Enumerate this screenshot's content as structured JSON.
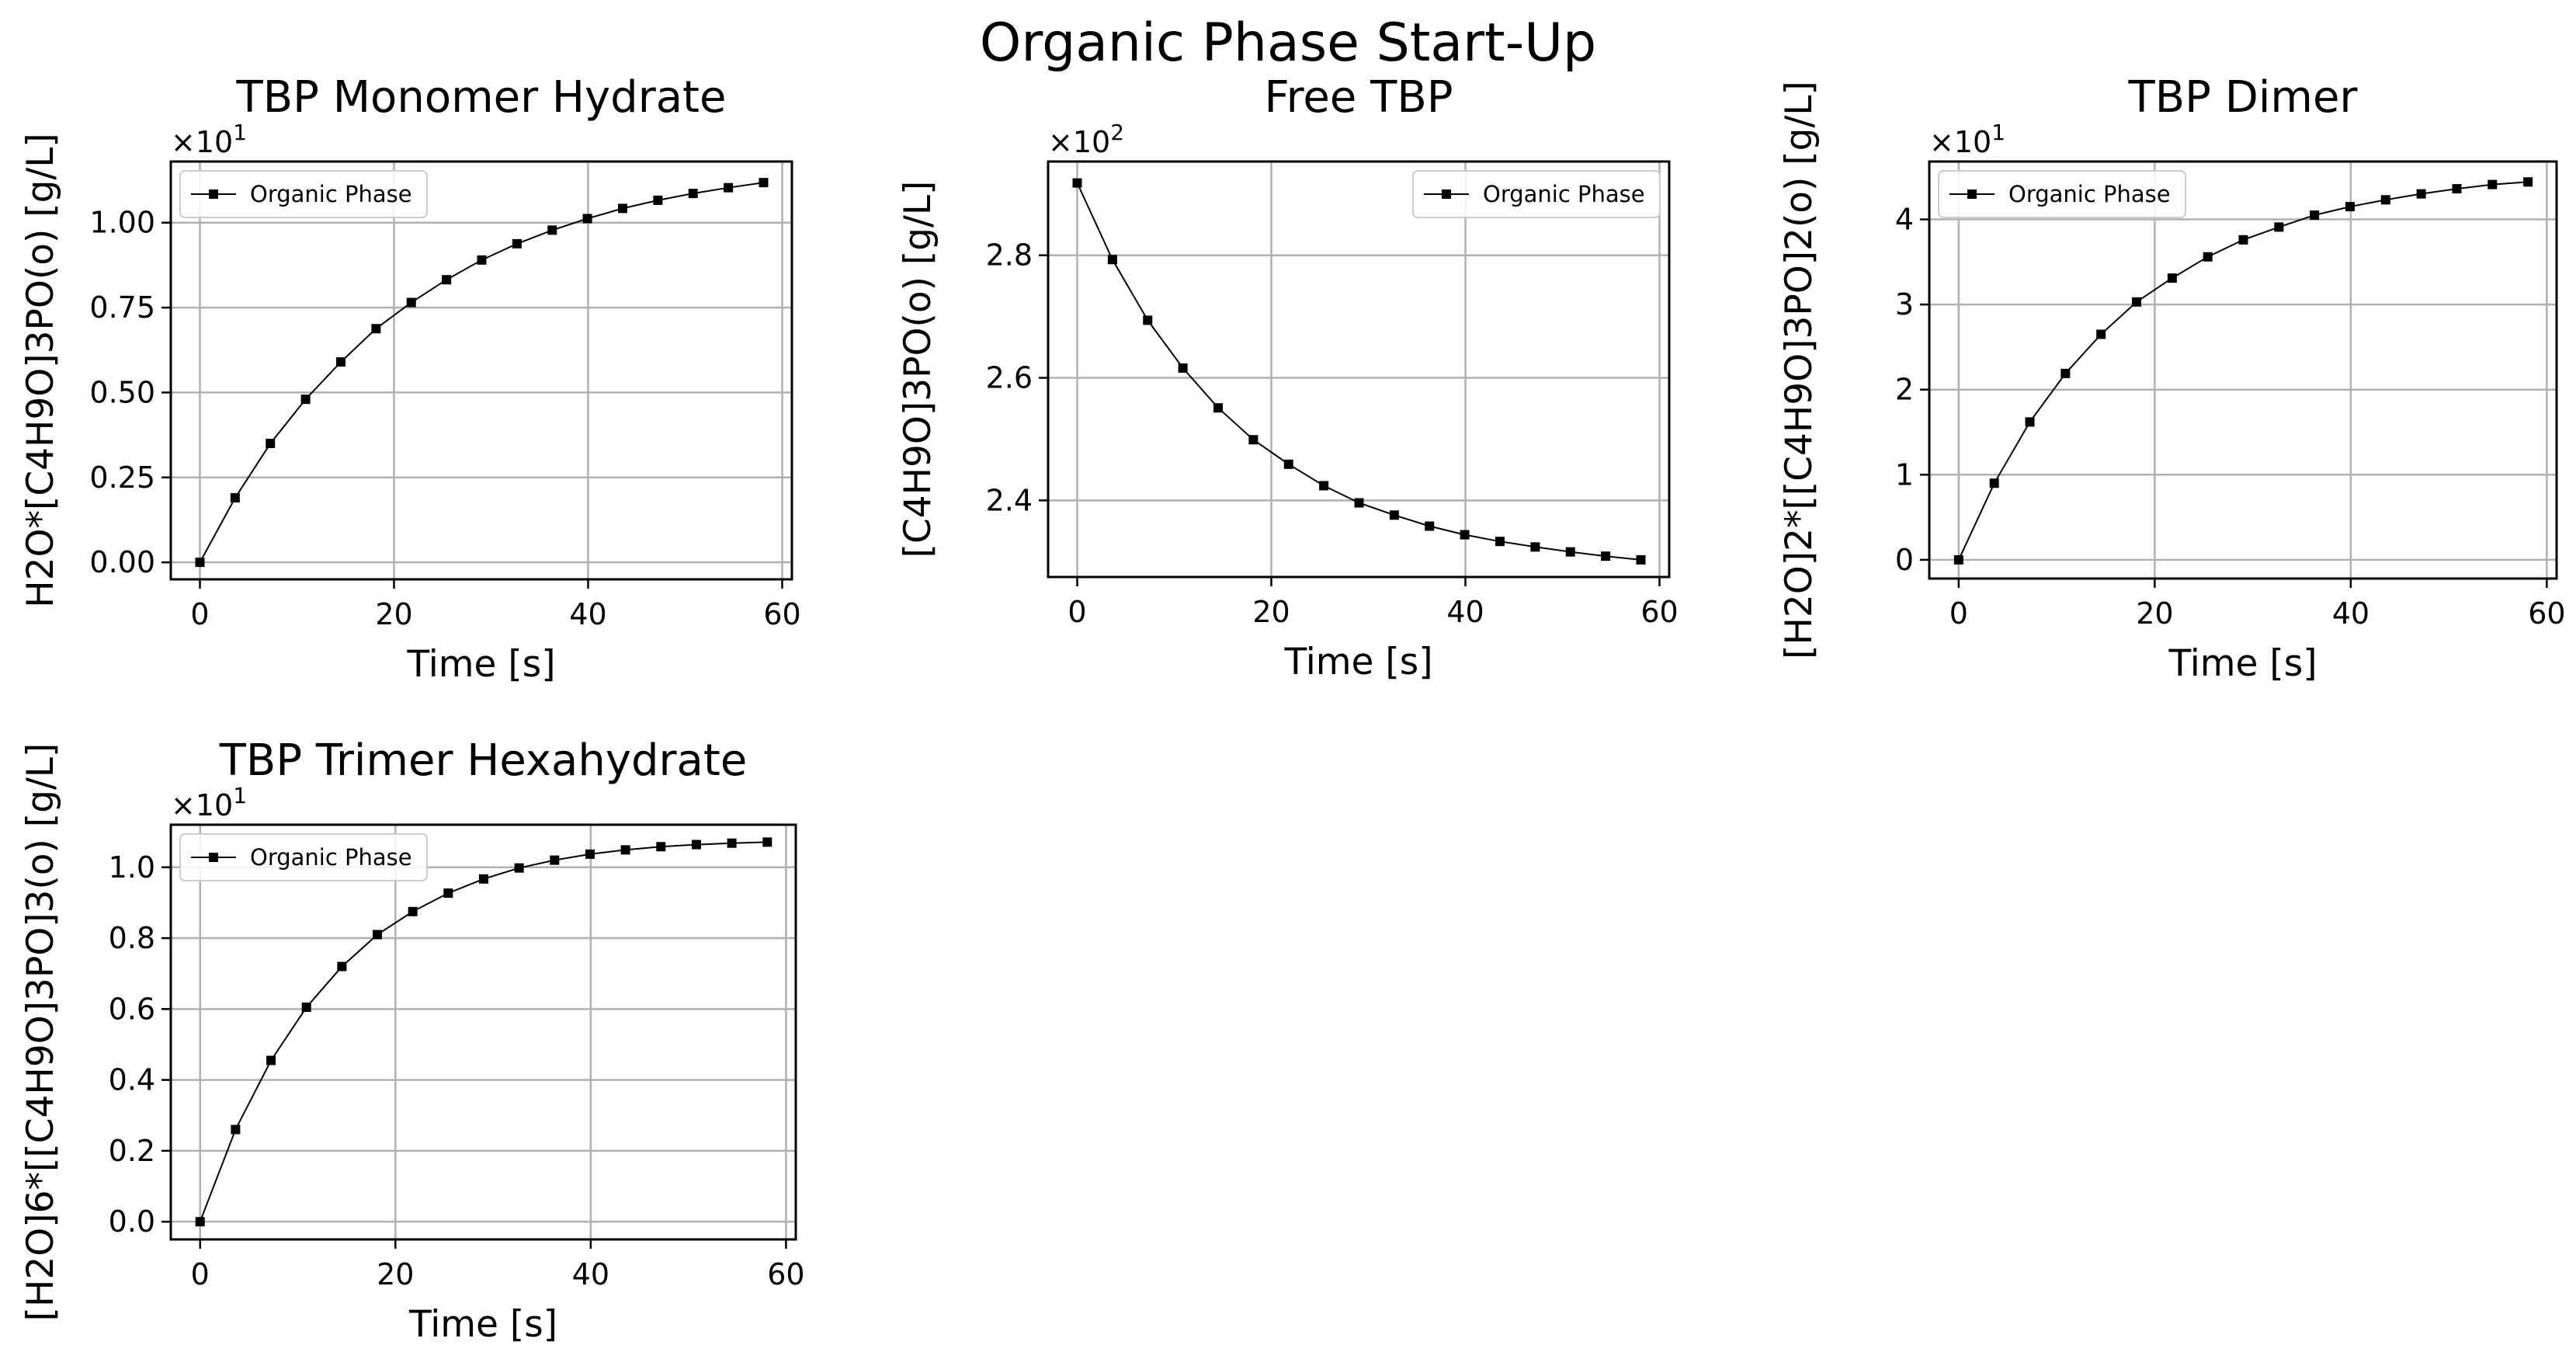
{
  "figure_title": "Organic Phase Start-Up",
  "chart_data": [
    {
      "type": "line",
      "title": "TBP Monomer Hydrate",
      "xlabel": "Time [s]",
      "ylabel": "H2O*[C4H9O]3PO(o) [g/L]",
      "offset_label": "×10",
      "offset_exp": "1",
      "scale": 10,
      "xlim": [
        -3,
        61
      ],
      "ylim": [
        -0.5,
        11.8
      ],
      "xticks": [
        0,
        20,
        40,
        60
      ],
      "xtick_labels": [
        "0",
        "20",
        "40",
        "60"
      ],
      "yticks": [
        0,
        2.5,
        5,
        7.5,
        10
      ],
      "ytick_labels": [
        "0.00",
        "0.25",
        "0.50",
        "0.75",
        "1.00"
      ],
      "grid": true,
      "legend_position": "upper left",
      "series": [
        {
          "name": "Organic Phase",
          "marker": "square",
          "color": "#000000",
          "x": [
            0,
            3.63,
            7.26,
            10.89,
            14.52,
            18.15,
            21.78,
            25.41,
            29.04,
            32.67,
            36.3,
            39.93,
            43.56,
            47.19,
            50.82,
            54.45,
            58.08
          ],
          "y": [
            0,
            1.9,
            3.5,
            4.8,
            5.9,
            6.88,
            7.65,
            8.32,
            8.9,
            9.38,
            9.78,
            10.12,
            10.42,
            10.66,
            10.86,
            11.03,
            11.18
          ]
        }
      ]
    },
    {
      "type": "line",
      "title": "Free TBP",
      "xlabel": "Time [s]",
      "ylabel": "[C4H9O]3PO(o) [g/L]",
      "offset_label": "×10",
      "offset_exp": "2",
      "scale": 100,
      "xlim": [
        -3,
        61
      ],
      "ylim": [
        227.5,
        295.3
      ],
      "xticks": [
        0,
        20,
        40,
        60
      ],
      "xtick_labels": [
        "0",
        "20",
        "40",
        "60"
      ],
      "yticks": [
        240,
        260,
        280
      ],
      "ytick_labels": [
        "2.4",
        "2.6",
        "2.8"
      ],
      "grid": true,
      "legend_position": "upper right",
      "series": [
        {
          "name": "Organic Phase",
          "marker": "square",
          "color": "#000000",
          "x": [
            0,
            3.63,
            7.26,
            10.89,
            14.52,
            18.15,
            21.78,
            25.41,
            29.04,
            32.67,
            36.3,
            39.93,
            43.56,
            47.19,
            50.82,
            54.45,
            58.08
          ],
          "y": [
            291.8,
            279.3,
            269.4,
            261.6,
            255.1,
            249.9,
            245.9,
            242.4,
            239.6,
            237.6,
            235.8,
            234.4,
            233.3,
            232.4,
            231.6,
            230.9,
            230.3
          ]
        }
      ]
    },
    {
      "type": "line",
      "title": "TBP Dimer",
      "xlabel": "Time [s]",
      "ylabel": "[H2O]2*[[C4H9O]3PO]2(o) [g/L]",
      "offset_label": "×10",
      "offset_exp": "1",
      "scale": 10,
      "xlim": [
        -3,
        61
      ],
      "ylim": [
        -2.2,
        46.8
      ],
      "xticks": [
        0,
        20,
        40,
        60
      ],
      "xtick_labels": [
        "0",
        "20",
        "40",
        "60"
      ],
      "yticks": [
        0,
        10,
        20,
        30,
        40
      ],
      "ytick_labels": [
        "0",
        "1",
        "2",
        "3",
        "4"
      ],
      "grid": true,
      "legend_position": "upper left",
      "series": [
        {
          "name": "Organic Phase",
          "marker": "square",
          "color": "#000000",
          "x": [
            0,
            3.63,
            7.26,
            10.89,
            14.52,
            18.15,
            21.78,
            25.41,
            29.04,
            32.67,
            36.3,
            39.93,
            43.56,
            47.19,
            50.82,
            54.45,
            58.08
          ],
          "y": [
            0,
            9,
            16.2,
            21.9,
            26.5,
            30.3,
            33.1,
            35.6,
            37.6,
            39.1,
            40.5,
            41.5,
            42.3,
            43,
            43.6,
            44.1,
            44.4
          ]
        }
      ]
    },
    {
      "type": "line",
      "title": "TBP Trimer Hexahydrate",
      "xlabel": "Time [s]",
      "ylabel": "[H2O]6*[[C4H9O]3PO]3(o) [g/L]",
      "offset_label": "×10",
      "offset_exp": "1",
      "scale": 10,
      "xlim": [
        -3,
        61
      ],
      "ylim": [
        -0.5,
        11.2
      ],
      "xticks": [
        0,
        20,
        40,
        60
      ],
      "xtick_labels": [
        "0",
        "20",
        "40",
        "60"
      ],
      "yticks": [
        0,
        2,
        4,
        6,
        8,
        10
      ],
      "ytick_labels": [
        "0.0",
        "0.2",
        "0.4",
        "0.6",
        "0.8",
        "1.0"
      ],
      "grid": true,
      "legend_position": "upper left",
      "series": [
        {
          "name": "Organic Phase",
          "marker": "square",
          "color": "#000000",
          "x": [
            0,
            3.63,
            7.26,
            10.89,
            14.52,
            18.15,
            21.78,
            25.41,
            29.04,
            32.67,
            36.3,
            39.93,
            43.56,
            47.19,
            50.82,
            54.45,
            58.08
          ],
          "y": [
            0,
            2.6,
            4.55,
            6.05,
            7.2,
            8.1,
            8.75,
            9.27,
            9.67,
            9.98,
            10.2,
            10.37,
            10.49,
            10.58,
            10.64,
            10.68,
            10.71
          ]
        }
      ]
    }
  ]
}
